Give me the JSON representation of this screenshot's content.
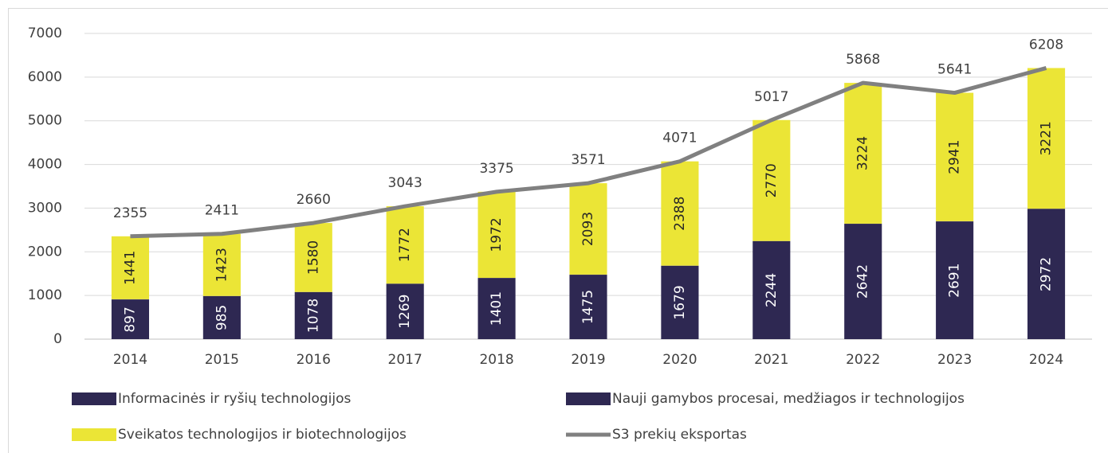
{
  "chart_data": {
    "type": "bar",
    "stacked": true,
    "categories": [
      "2014",
      "2015",
      "2016",
      "2017",
      "2018",
      "2019",
      "2020",
      "2021",
      "2022",
      "2023",
      "2024"
    ],
    "series": [
      {
        "name": "Informacinės ir ryšių technologijos",
        "color": "#2e2852",
        "values": [
          897,
          985,
          1078,
          1269,
          1401,
          1475,
          1679,
          2244,
          2642,
          2691,
          2972
        ],
        "labels": true
      },
      {
        "name": "Nauji gamybos procesai, medžiagos ir technologijos",
        "color": "#2e2852",
        "values": [
          17,
          3,
          2,
          2,
          2,
          3,
          4,
          3,
          2,
          9,
          15
        ],
        "labels": false
      },
      {
        "name": "Sveikatos technologijos ir biotechnologijos",
        "color": "#ebe536",
        "values": [
          1441,
          1423,
          1580,
          1772,
          1972,
          2093,
          2388,
          2770,
          3224,
          2941,
          3221
        ],
        "labels": true
      },
      {
        "name": "S3 prekių eksportas",
        "type": "line",
        "color": "#808080",
        "values": [
          2355,
          2411,
          2660,
          3043,
          3375,
          3571,
          4071,
          5017,
          5868,
          5641,
          6208
        ],
        "labels": true
      }
    ],
    "ylim": [
      0,
      7000
    ],
    "yticks": [
      0,
      1000,
      2000,
      3000,
      4000,
      5000,
      6000,
      7000
    ],
    "grid": true
  }
}
